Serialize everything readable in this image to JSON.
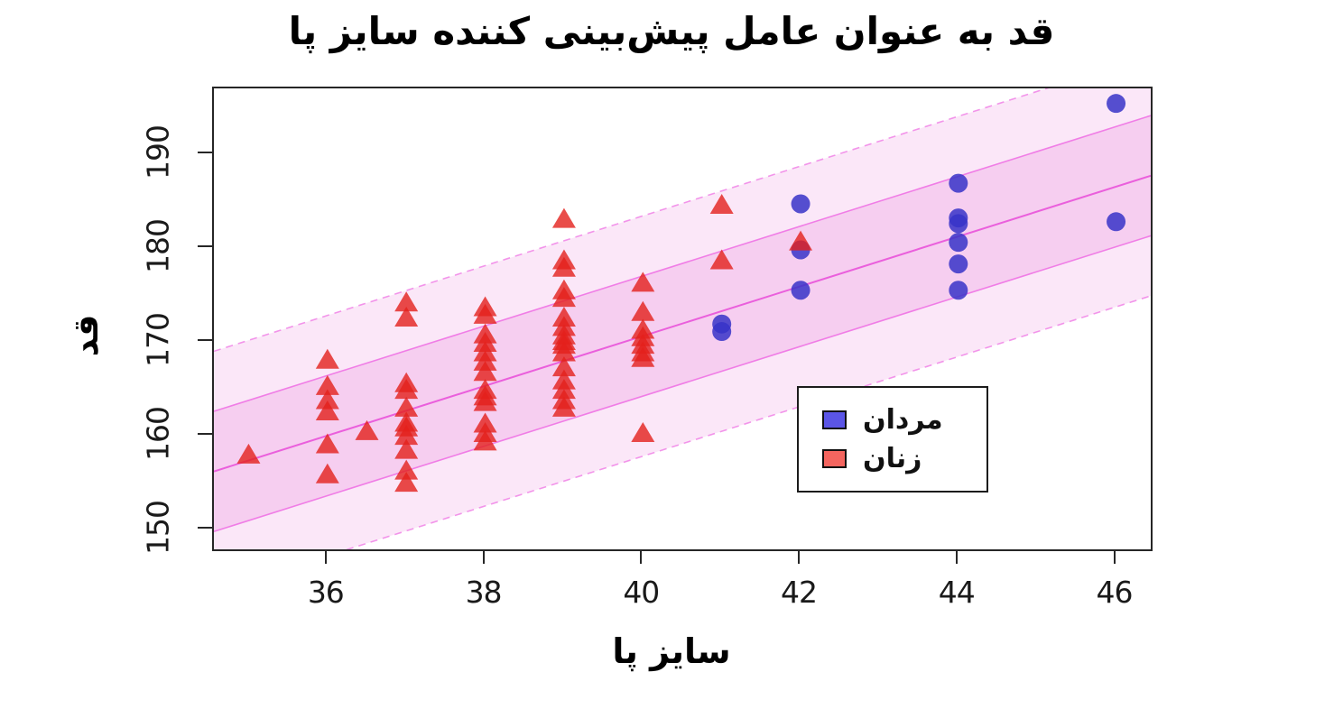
{
  "title": "قد به عنوان عامل پیش‌بینی کننده  سایز پا",
  "x_axis": {
    "label": "سایز پا",
    "ticks": [
      36,
      38,
      40,
      42,
      44,
      46
    ],
    "range": [
      34.56,
      46.44
    ]
  },
  "y_axis": {
    "label": "قد",
    "ticks": [
      150,
      160,
      170,
      180,
      190
    ],
    "range": [
      147.9,
      197.0
    ]
  },
  "legend": {
    "items": [
      {
        "label": "مردان",
        "color": "#5B55E6"
      },
      {
        "label": "زنان",
        "color": "#F4655F"
      }
    ]
  },
  "chart_data": {
    "type": "scatter",
    "xlabel": "سایز پا",
    "ylabel": "قد",
    "xlim": [
      34.56,
      46.44
    ],
    "ylim": [
      147.9,
      197.0
    ],
    "legend_position": "right-middle",
    "series": [
      {
        "name": "مردان",
        "marker": "circle",
        "color": "#3732C8",
        "points": [
          [
            41,
            171.9
          ],
          [
            41,
            171.1
          ],
          [
            42,
            184.7
          ],
          [
            42,
            179.8
          ],
          [
            42,
            175.5
          ],
          [
            44,
            186.9
          ],
          [
            44,
            183.2
          ],
          [
            44,
            182.6
          ],
          [
            44,
            180.6
          ],
          [
            44,
            178.3
          ],
          [
            44,
            175.5
          ],
          [
            46,
            195.4
          ],
          [
            46,
            182.8
          ]
        ]
      },
      {
        "name": "زنان",
        "marker": "triangle",
        "color": "#E4201B",
        "points": [
          [
            35,
            158.0
          ],
          [
            36,
            168.1
          ],
          [
            36,
            165.3
          ],
          [
            36,
            163.8
          ],
          [
            36,
            162.6
          ],
          [
            36,
            159.1
          ],
          [
            36,
            155.9
          ],
          [
            36.5,
            160.5
          ],
          [
            37,
            174.2
          ],
          [
            37,
            172.6
          ],
          [
            37,
            165.6
          ],
          [
            37,
            164.9
          ],
          [
            37,
            163.0
          ],
          [
            37,
            161.4
          ],
          [
            37,
            160.9
          ],
          [
            37,
            160.0
          ],
          [
            37,
            158.5
          ],
          [
            37,
            156.3
          ],
          [
            37,
            155.0
          ],
          [
            38,
            173.7
          ],
          [
            38,
            172.9
          ],
          [
            38,
            170.8
          ],
          [
            38,
            169.9
          ],
          [
            38,
            168.9
          ],
          [
            38,
            167.9
          ],
          [
            38,
            166.8
          ],
          [
            38,
            164.9
          ],
          [
            38,
            164.2
          ],
          [
            38,
            163.6
          ],
          [
            38,
            161.3
          ],
          [
            38,
            160.3
          ],
          [
            38,
            159.4
          ],
          [
            39,
            183.1
          ],
          [
            39,
            178.7
          ],
          [
            39,
            177.9
          ],
          [
            39,
            175.5
          ],
          [
            39,
            174.7
          ],
          [
            39,
            172.6
          ],
          [
            39,
            171.6
          ],
          [
            39,
            170.7
          ],
          [
            39,
            170.1
          ],
          [
            39,
            169.7
          ],
          [
            39,
            168.9
          ],
          [
            39,
            167.3
          ],
          [
            39,
            165.9
          ],
          [
            39,
            164.9
          ],
          [
            39,
            163.8
          ],
          [
            39,
            163.0
          ],
          [
            40,
            176.3
          ],
          [
            40,
            173.2
          ],
          [
            40,
            171.3
          ],
          [
            40,
            170.5
          ],
          [
            40,
            169.7
          ],
          [
            40,
            168.9
          ],
          [
            40,
            168.3
          ],
          [
            40,
            160.3
          ],
          [
            41,
            184.6
          ],
          [
            41,
            178.7
          ],
          [
            42,
            180.7
          ]
        ]
      }
    ],
    "regression": {
      "x": [
        34.56,
        46.44
      ],
      "y": [
        156.2,
        187.7
      ],
      "inner_band_halfwidth": 6.4,
      "outer_band_halfwidth": 12.8,
      "line_color": "#EA5FDC",
      "edge_color": "#F07DE6",
      "inner_fill": "#F6CEF0",
      "outer_fill": "#FBE7F8"
    }
  }
}
